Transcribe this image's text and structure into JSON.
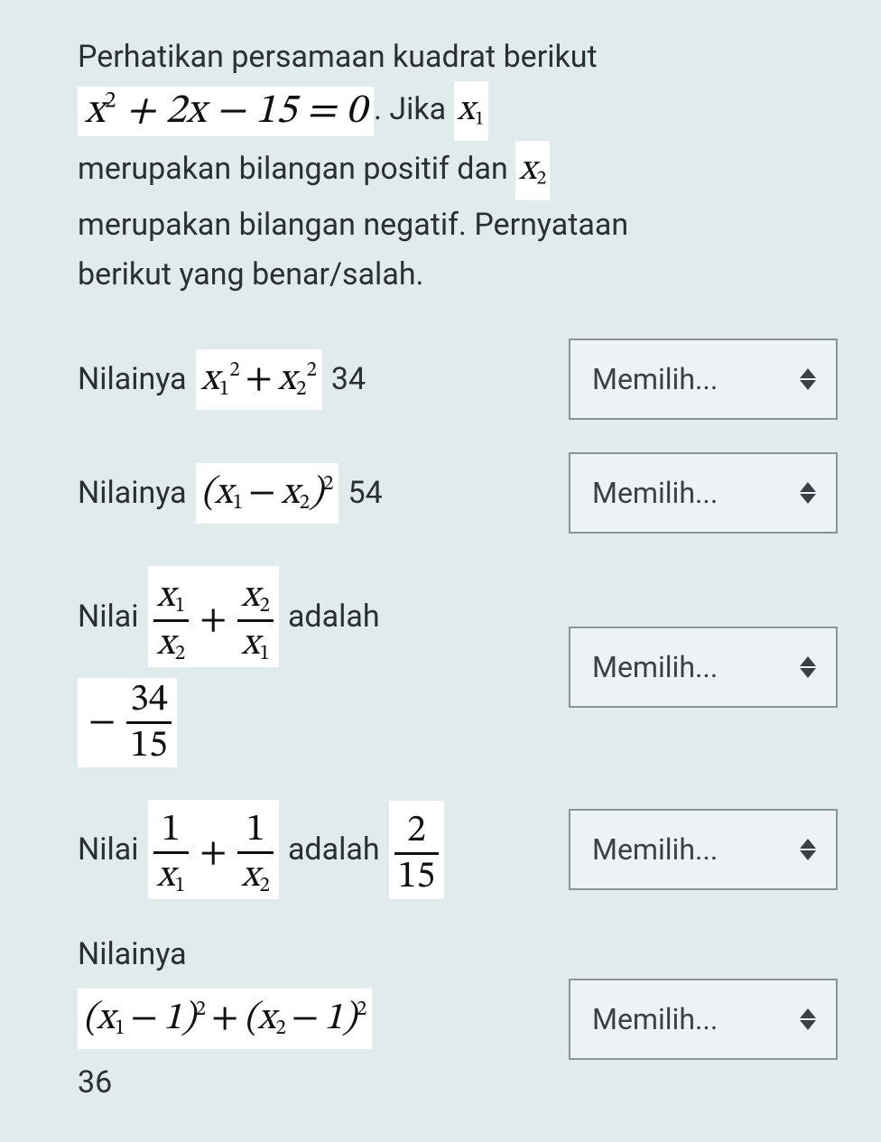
{
  "colors": {
    "page_bg": "#e1ebec",
    "text": "#2a2f33",
    "math_bg": "#ffffff",
    "math_text": "#111111",
    "select_border": "#8a9398",
    "select_bg": "#edf3f4",
    "select_text": "#3a4045"
  },
  "typography": {
    "body_fontsize": 34,
    "main_eq_fontsize": 46,
    "math_fontsize": 42,
    "select_fontsize": 32,
    "body_font": "-apple-system / Segoe UI / Roboto",
    "math_font": "Cambria Math / Times New Roman (italic serif)"
  },
  "intro": {
    "line1": "Perhatikan persamaan kuadrat berikut",
    "main_equation": "x² + 2x − 15 = 0",
    "after_eq": ". Jika ",
    "x1": "x₁",
    "line2_prefix": " merupakan bilangan positif dan ",
    "x2": "x₂",
    "line3": " merupakan bilangan negatif. Pernyataan",
    "line4": "berikut yang benar/salah."
  },
  "select": {
    "placeholder": "Memilih..."
  },
  "statements": [
    {
      "id": "s1",
      "prefix": "Nilainya ",
      "math_html": "<i>x</i><span class='sub'>1</span><span class='sup'>2</span><span class='op'>+</span><i>x</i><span class='sub'>2</span><span class='sup'>2</span>",
      "value_text": "34"
    },
    {
      "id": "s2",
      "prefix": "Nilainya ",
      "math_html": "(<i>x</i><span class='sub'>1</span><span class='op'>−</span><i>x</i><span class='sub'>2</span>)<span class='sup'>2</span>",
      "value_text": "54"
    },
    {
      "id": "s3",
      "prefix": "Nilai ",
      "math_html": "<span class='frac-outer'><span class='frac'><span class='num'><i>x</i><span class='sub'>1</span></span><span class='bar'></span><span class='den'><i>x</i><span class='sub'>2</span></span></span><span class='op'>+</span><span class='frac'><span class='num'><i>x</i><span class='sub'>2</span></span><span class='bar'></span><span class='den'><i>x</i><span class='sub'>1</span></span></span></span>",
      "mid_word": "adalah",
      "value_math_html": "<span class='frac-outer'><span class='op'>−</span><span class='frac'><span class='num'>34</span><span class='bar'></span><span class='den'>15</span></span></span>"
    },
    {
      "id": "s4",
      "prefix": "Nilai ",
      "math_html": "<span class='frac-outer'><span class='frac'><span class='num'>1</span><span class='bar'></span><span class='den'><i>x</i><span class='sub'>1</span></span></span><span class='op'>+</span><span class='frac'><span class='num'>1</span><span class='bar'></span><span class='den'><i>x</i><span class='sub'>2</span></span></span></span>",
      "mid_word": "adalah",
      "value_math_html": "<span class='frac-outer'><span class='frac'><span class='num'>2</span><span class='bar'></span><span class='den'>15</span></span></span>"
    },
    {
      "id": "s5",
      "prefix": "Nilainya",
      "math_html": "(<i>x</i><span class='sub'>1</span><span class='op'>−</span>1)<span class='sup'>2</span><span class='op'>+</span>(<i>x</i><span class='sub'>2</span><span class='op'>−</span>1)<span class='sup'>2</span>",
      "value_text": "36"
    }
  ]
}
